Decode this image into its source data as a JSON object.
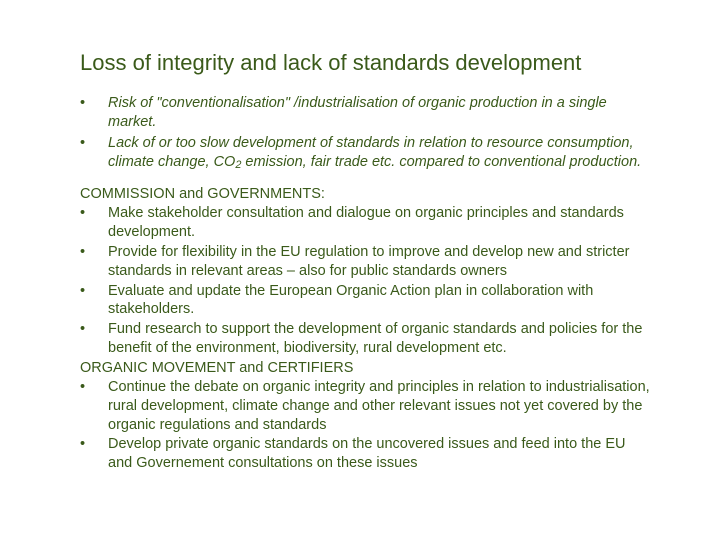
{
  "title": "Loss of integrity and lack of standards development",
  "issues": {
    "item1_a": "Risk of \"conventionalisation\" /industrialisation of organic production in a single market.",
    "item2_a": "Lack of or too slow development of standards in relation to resource consumption, climate change, CO",
    "item2_sub": "2",
    "item2_b": " emission, fair trade etc. compared to conventional production."
  },
  "sections": {
    "a": {
      "heading": "COMMISSION and GOVERNMENTS:",
      "items": [
        "Make stakeholder consultation and dialogue on organic principles and standards development.",
        "Provide for flexibility in the EU regulation to improve and develop new and stricter standards in relevant areas – also for public standards owners",
        "Evaluate and update the European Organic Action plan in collaboration with stakeholders.",
        "Fund research to support the development of organic standards and policies for the benefit of the environment, biodiversity, rural development etc."
      ]
    },
    "b": {
      "heading": "ORGANIC MOVEMENT and CERTIFIERS",
      "items": [
        "Continue the debate on organic integrity and principles in relation to industrialisation, rural development, climate change and other relevant issues not yet covered by the organic regulations and standards",
        "Develop private organic standards on the uncovered issues and feed into the EU and Governement consultations on these issues"
      ]
    }
  },
  "colors": {
    "text": "#3a5a1a",
    "background": "#ffffff"
  },
  "typography": {
    "title_fontsize": 22,
    "body_fontsize": 14.5,
    "font_family": "Trebuchet MS"
  }
}
